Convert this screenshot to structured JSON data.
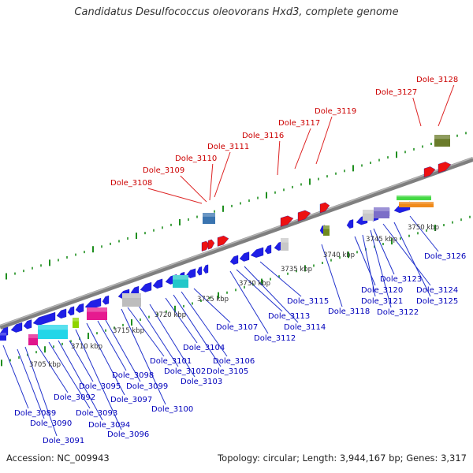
{
  "title": "Candidatus Desulfococcus oleovorans Hxd3, complete genome",
  "footer": {
    "accession": "Accession: NC_009943",
    "summary": "Topology: circular; Length: 3,944,167 bp; Genes: 3,317"
  },
  "colors": {
    "backbone": "#7f7f7f",
    "tick": "#1f8f1f",
    "blue_gene": "#1f1fe6",
    "red_gene": "#ee1111",
    "label_red": "#cc0000",
    "label_blue": "#0000bb",
    "leader_red": "#dd2222",
    "leader_blue": "#2233cc"
  },
  "scale_labels": [
    "3705 kbp",
    "3710 kbp",
    "3715 kbp",
    "3720 kbp",
    "3725 kbp",
    "3730 kbp",
    "3735 kbp",
    "3740 kbp",
    "3745 kbp",
    "3750 kbp"
  ],
  "upper_labels": [
    "Dole_3108",
    "Dole_3109",
    "Dole_3110",
    "Dole_3111",
    "Dole_3116",
    "Dole_3117",
    "Dole_3119",
    "Dole_3127",
    "Dole_3128"
  ],
  "lower_labels": [
    "Dole_3089",
    "Dole_3090",
    "Dole_3091",
    "Dole_3092",
    "Dole_3093",
    "Dole_3094",
    "Dole_3095",
    "Dole_3096",
    "Dole_3097",
    "Dole_3098",
    "Dole_3099",
    "Dole_3100",
    "Dole_3101",
    "Dole_3102",
    "Dole_3103",
    "Dole_3104",
    "Dole_3105",
    "Dole_3106",
    "Dole_3107",
    "Dole_3112",
    "Dole_3113",
    "Dole_3114",
    "Dole_3115",
    "Dole_3118",
    "Dole_3120",
    "Dole_3121",
    "Dole_3122",
    "Dole_3123",
    "Dole_3124",
    "Dole_3125",
    "Dole_3126"
  ]
}
